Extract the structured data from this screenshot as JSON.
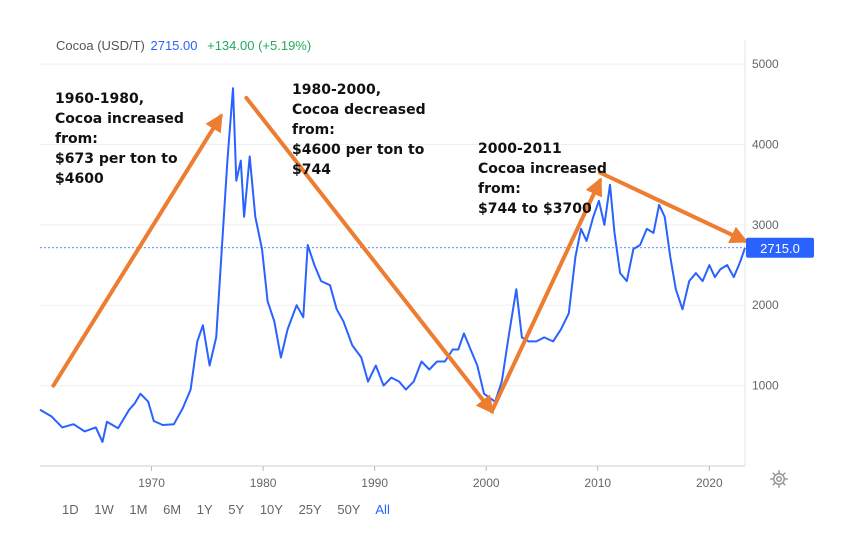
{
  "header": {
    "symbol": "Cocoa (USD/T)",
    "price": "2715.00",
    "change": "+134.00 (+5.19%)"
  },
  "price_label": "2715.0",
  "ranges": [
    {
      "label": "1D",
      "active": false
    },
    {
      "label": "1W",
      "active": false
    },
    {
      "label": "1M",
      "active": false
    },
    {
      "label": "6M",
      "active": false
    },
    {
      "label": "1Y",
      "active": false
    },
    {
      "label": "5Y",
      "active": false
    },
    {
      "label": "10Y",
      "active": false
    },
    {
      "label": "25Y",
      "active": false
    },
    {
      "label": "50Y",
      "active": false
    },
    {
      "label": "All",
      "active": true
    }
  ],
  "colors": {
    "line": "#2962ff",
    "arrow": "#ed7d31",
    "price_tag": "#2962ff",
    "up": "#22ab5c"
  },
  "icons": {
    "settings": "gear-icon"
  },
  "annotations": [
    {
      "lines": [
        "1960-1980,",
        "Cocoa increased",
        "from:",
        "$673 per ton to",
        "$4600"
      ]
    },
    {
      "lines": [
        "1980-2000,",
        "Cocoa decreased",
        "from:",
        "$4600 per ton to",
        "$744"
      ]
    },
    {
      "lines": [
        "2000-2011",
        "Cocoa increased",
        "from:",
        "$744 to $3700"
      ]
    }
  ],
  "chart_data": {
    "type": "line",
    "x_ticks": [
      "1970",
      "1980",
      "1990",
      "2000",
      "2010",
      "2020"
    ],
    "y_ticks": [
      "1000",
      "2000",
      "3000",
      "4000",
      "5000"
    ],
    "xlim": [
      1960.0,
      2023.2
    ],
    "ylim": [
      0,
      5300
    ],
    "current_value": 2715.0,
    "series": [
      {
        "x": [
          1960.0,
          1961,
          1962,
          1963,
          1964,
          1965,
          1965.6,
          1966,
          1967,
          1968,
          1968.5,
          1969,
          1969.7,
          1970.2,
          1971,
          1972,
          1972.8,
          1973.5,
          1974.1,
          1974.6,
          1975.2,
          1975.8,
          1976.3,
          1976.8,
          1977.3,
          1977.6,
          1978.0,
          1978.3,
          1978.8,
          1979.3,
          1979.9,
          1980.4,
          1981.0,
          1981.6,
          1982.2,
          1983.0,
          1983.6,
          1984.0,
          1984.6,
          1985.2,
          1986.0,
          1986.6,
          1987.2,
          1988.0,
          1988.8,
          1989.4,
          1990.1,
          1990.8,
          1991.5,
          1992.2,
          1992.8,
          1993.5,
          1994.2,
          1994.9,
          1995.6,
          1996.3,
          1997.0,
          1997.5,
          1998.0,
          1998.6,
          1999.2,
          1999.8,
          2000.3,
          2000.8,
          2001.4,
          2002.0,
          2002.7,
          2003.2,
          2003.8,
          2004.5,
          2005.2,
          2006.0,
          2006.7,
          2007.4,
          2008.0,
          2008.5,
          2009.0,
          2009.6,
          2010.1,
          2010.6,
          2011.1,
          2011.5,
          2012.0,
          2012.6,
          2013.2,
          2013.8,
          2014.4,
          2015.0,
          2015.5,
          2016.0,
          2016.5,
          2017.0,
          2017.6,
          2018.2,
          2018.8,
          2019.4,
          2020.0,
          2020.5,
          2021.0,
          2021.6,
          2022.2,
          2022.8,
          2023.2
        ],
        "y": [
          700,
          620,
          480,
          520,
          430,
          480,
          300,
          550,
          470,
          700,
          780,
          900,
          800,
          560,
          510,
          520,
          720,
          950,
          1550,
          1750,
          1250,
          1600,
          2700,
          3800,
          4700,
          3550,
          3800,
          3100,
          3850,
          3100,
          2700,
          2050,
          1800,
          1350,
          1700,
          2000,
          1850,
          2750,
          2500,
          2300,
          2250,
          1950,
          1800,
          1500,
          1350,
          1050,
          1250,
          1000,
          1100,
          1050,
          950,
          1050,
          1300,
          1200,
          1300,
          1300,
          1450,
          1450,
          1650,
          1450,
          1250,
          900,
          850,
          800,
          1050,
          1600,
          2200,
          1600,
          1550,
          1550,
          1600,
          1550,
          1700,
          1900,
          2600,
          2950,
          2800,
          3100,
          3300,
          3000,
          3500,
          2900,
          2400,
          2300,
          2700,
          2750,
          2950,
          2900,
          3250,
          3100,
          2600,
          2200,
          1950,
          2300,
          2400,
          2300,
          2500,
          2350,
          2450,
          2500,
          2350,
          2550,
          2715
        ]
      }
    ],
    "arrows": [
      {
        "x1": 1961.2,
        "y1": 1000,
        "x2": 1976.2,
        "y2": 4350
      },
      {
        "x1": 1978.5,
        "y1": 4580,
        "x2": 2000.5,
        "y2": 680
      },
      {
        "x1": 2000.5,
        "y1": 680,
        "x2": 2010.2,
        "y2": 3550
      },
      {
        "x1": 2010.2,
        "y1": 3650,
        "x2": 2023.2,
        "y2": 2800
      }
    ]
  }
}
